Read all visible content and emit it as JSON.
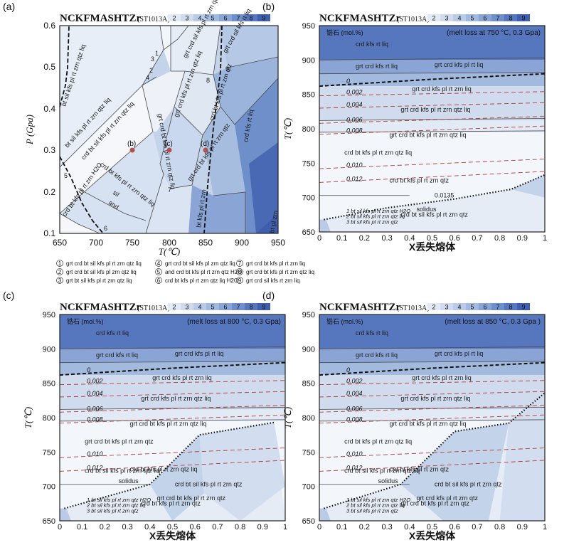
{
  "colors": {
    "scale": [
      "#f3f6fb",
      "#e2eaf5",
      "#d0dcee",
      "#b9cbe6",
      "#a3badf",
      "#8aa5d5",
      "#6f8fcb",
      "#5676bd",
      "#3f5fad"
    ],
    "isopleth": "#b03a3a",
    "label": "#1a1a1a"
  },
  "legend_scale": {
    "system": "NCKFMASHTZr",
    "sample": "(ST1013A)",
    "values": [
      "2",
      "3",
      "4",
      "5",
      "6",
      "7",
      "8",
      "9"
    ]
  },
  "panel_letters": [
    "(a)",
    "(b)",
    "(c)",
    "(d)"
  ],
  "panel_a": {
    "xlabel": "T(℃)",
    "ylabel": "P (Gpa)",
    "xticks": [
      "650",
      "700",
      "750",
      "800",
      "850",
      "900",
      "950"
    ],
    "yticks": [
      "0.1",
      "0.2",
      "0.3",
      "0.4",
      "0.5",
      "0.6"
    ],
    "points": [
      "(b)",
      "(c)",
      "(d)"
    ],
    "field_labels": [
      "bt sil kfs pl rt zrn qtz liq",
      "bt sil kfs pl rt zrn qtz liq",
      "crd bt sil kfs pl rt zrn qtz liq",
      "crd bt kfs pl rt zrn qtz liq",
      "crd bt kfs pl rt zrn H2O",
      "grt crd sil kfs pl rt zrn qtz liq",
      "grt crd bt kfs pl rt zrn qtz liq",
      "grt crd kfs pl rt zrn qtz liq",
      "grt crd bt kfs pl rt zrn qtz",
      "grt crd sil kfs rt liq",
      "crd bt kfs pl rt zrn qtz",
      "crd kfs rt liq",
      "bt kfs pl rt zrn",
      "bt pl zrn",
      "sil",
      "and",
      "1",
      "2",
      "3",
      "4",
      "5",
      "6",
      "7",
      "8",
      "9"
    ]
  },
  "legend_a": [
    {
      "n": "1",
      "text": "grt crd bt sil kfs pl rt zrn qtz liq"
    },
    {
      "n": "2",
      "text": "grt crd bt sil kfs pl zrn qtz liq"
    },
    {
      "n": "3",
      "text": "grt bt sil kfs pl rt zrn qtz liq"
    },
    {
      "n": "4",
      "text": "grt crd bt sil kfs pl zrn qtz liq"
    },
    {
      "n": "5",
      "text": "and crd bt kfs pl rt zrn qtz H2O"
    },
    {
      "n": "6",
      "text": "crd bt kfs pl rt zrn qtz liq H2O"
    },
    {
      "n": "7",
      "text": "grt crd bt kfs pl rt zrn liq"
    },
    {
      "n": "8",
      "text": "grt crd bt kfs pl rt zrn qtz liq"
    },
    {
      "n": "9",
      "text": "grt crd sil kfs rt zrn liq"
    }
  ],
  "tx_common": {
    "xlabel": "X丢失熔体",
    "ylabel": "T(℃)",
    "xticks": [
      "0",
      "0.1",
      "0.2",
      "0.3",
      "0.4",
      "0.5",
      "0.6",
      "0.7",
      "0.8",
      "0.9",
      "1"
    ],
    "yticks": [
      "650",
      "700",
      "750",
      "800",
      "850",
      "900",
      "950"
    ],
    "zircon_label": "锆石 (mol.%)",
    "iso_labels": [
      "0",
      "0.002",
      "0.004",
      "0.006",
      "0.008",
      "0.010",
      "0.012"
    ],
    "small_fields": [
      "1  bt sil kfs pl rt zrn qtz H2O",
      "2  bt sil kfs pl rt zrn qtz liq",
      "3  bt sil kfs pl rt zrn qtz"
    ]
  },
  "panel_b": {
    "title": "(melt loss at 750 °C, 0.3 Gpa)",
    "fields": [
      "crd kfs rt liq",
      "grt crd kfs rt liq",
      "grt crd kfs pl rt liq",
      "grt crd kfs pl rt zrn liq",
      "grt crd kfs pl rt zrn qtz liq",
      "grt crd bt kfs pl rt zrn qtz liq",
      "crd bt kfs pl rt zrn qtz liq",
      "crd bt kfs pl rt zrn qtz",
      "crd bt sil kfs pl rt zrn qtz",
      "solidus",
      "0.0135"
    ]
  },
  "panel_c": {
    "title": "(melt loss at 800 °C, 0.3 Gpa)",
    "fields": [
      "crd kfs rt liq",
      "grt crd kfs rt liq",
      "grt crd kfs pl rt liq",
      "grt crd kfs pl rt zrn liq",
      "grt crd kfs pl rt zrn qtz liq",
      "grt crd bt kfs pl rt zrn qtz liq",
      "grt crd bt kfs pl rt zrn qtz",
      "crd bt kfs pl rt zrn qtz liq",
      "crd bt kfs pl rt zrn qtz",
      "grt crd bt kfs pl rt zrn qtz",
      "crd bt sil kfs pl rt zrn qtz",
      "crd bt sil kfs pl rt zrn qtz liq",
      "solidus"
    ]
  },
  "panel_d": {
    "title": "(melt loss at 850 °C, 0.3 Gpa )",
    "fields": [
      "crd kfs rt liq",
      "grt crd kfs rt liq",
      "grt crd kfs pl rt liq",
      "grt crd kfs pl rt zrn liq",
      "grt crd kfs pl rt zrn qtz liq",
      "grt crd bt kfs pl rt zrn qtz liq",
      "crd bt kfs pl rt zrn qtz liq",
      "crd bt kfs pl rt zrn qtz",
      "grt crd bt kfs pl rt zrn qtz",
      "grt crd kfs pl rt zrn qtz",
      "crd bt sil kfs pl rt zrn qtz",
      "crd bt sil kfs pl rt zrn qtz liq",
      "solidus"
    ]
  },
  "chart_data": [
    {
      "type": "heatmap",
      "panel": "(a)",
      "xlabel": "T(℃)",
      "ylabel": "P (Gpa)",
      "xlim": [
        650,
        950
      ],
      "ylim": [
        0.1,
        0.6
      ],
      "points": [
        {
          "label": "(b)",
          "T": 750,
          "P": 0.3
        },
        {
          "label": "(c)",
          "T": 800,
          "P": 0.3
        },
        {
          "label": "(d)",
          "T": 850,
          "P": 0.3
        }
      ]
    },
    {
      "type": "heatmap",
      "panel": "(b)",
      "xlim": [
        0,
        1
      ],
      "ylim": [
        650,
        950
      ],
      "solidus": [
        [
          0.02,
          668
        ],
        [
          0.3,
          685
        ],
        [
          0.6,
          698
        ],
        [
          0.85,
          712
        ],
        [
          1.0,
          733
        ]
      ]
    },
    {
      "type": "heatmap",
      "panel": "(c)",
      "xlim": [
        0,
        1
      ],
      "ylim": [
        650,
        950
      ],
      "solidus": [
        [
          0.02,
          668
        ],
        [
          0.4,
          703
        ],
        [
          0.62,
          775
        ],
        [
          0.95,
          793
        ]
      ]
    },
    {
      "type": "heatmap",
      "panel": "(d)",
      "xlim": [
        0,
        1
      ],
      "ylim": [
        650,
        950
      ],
      "solidus": [
        [
          0.02,
          668
        ],
        [
          0.36,
          703
        ],
        [
          0.6,
          780
        ],
        [
          0.84,
          792
        ],
        [
          1.0,
          836
        ]
      ]
    }
  ]
}
